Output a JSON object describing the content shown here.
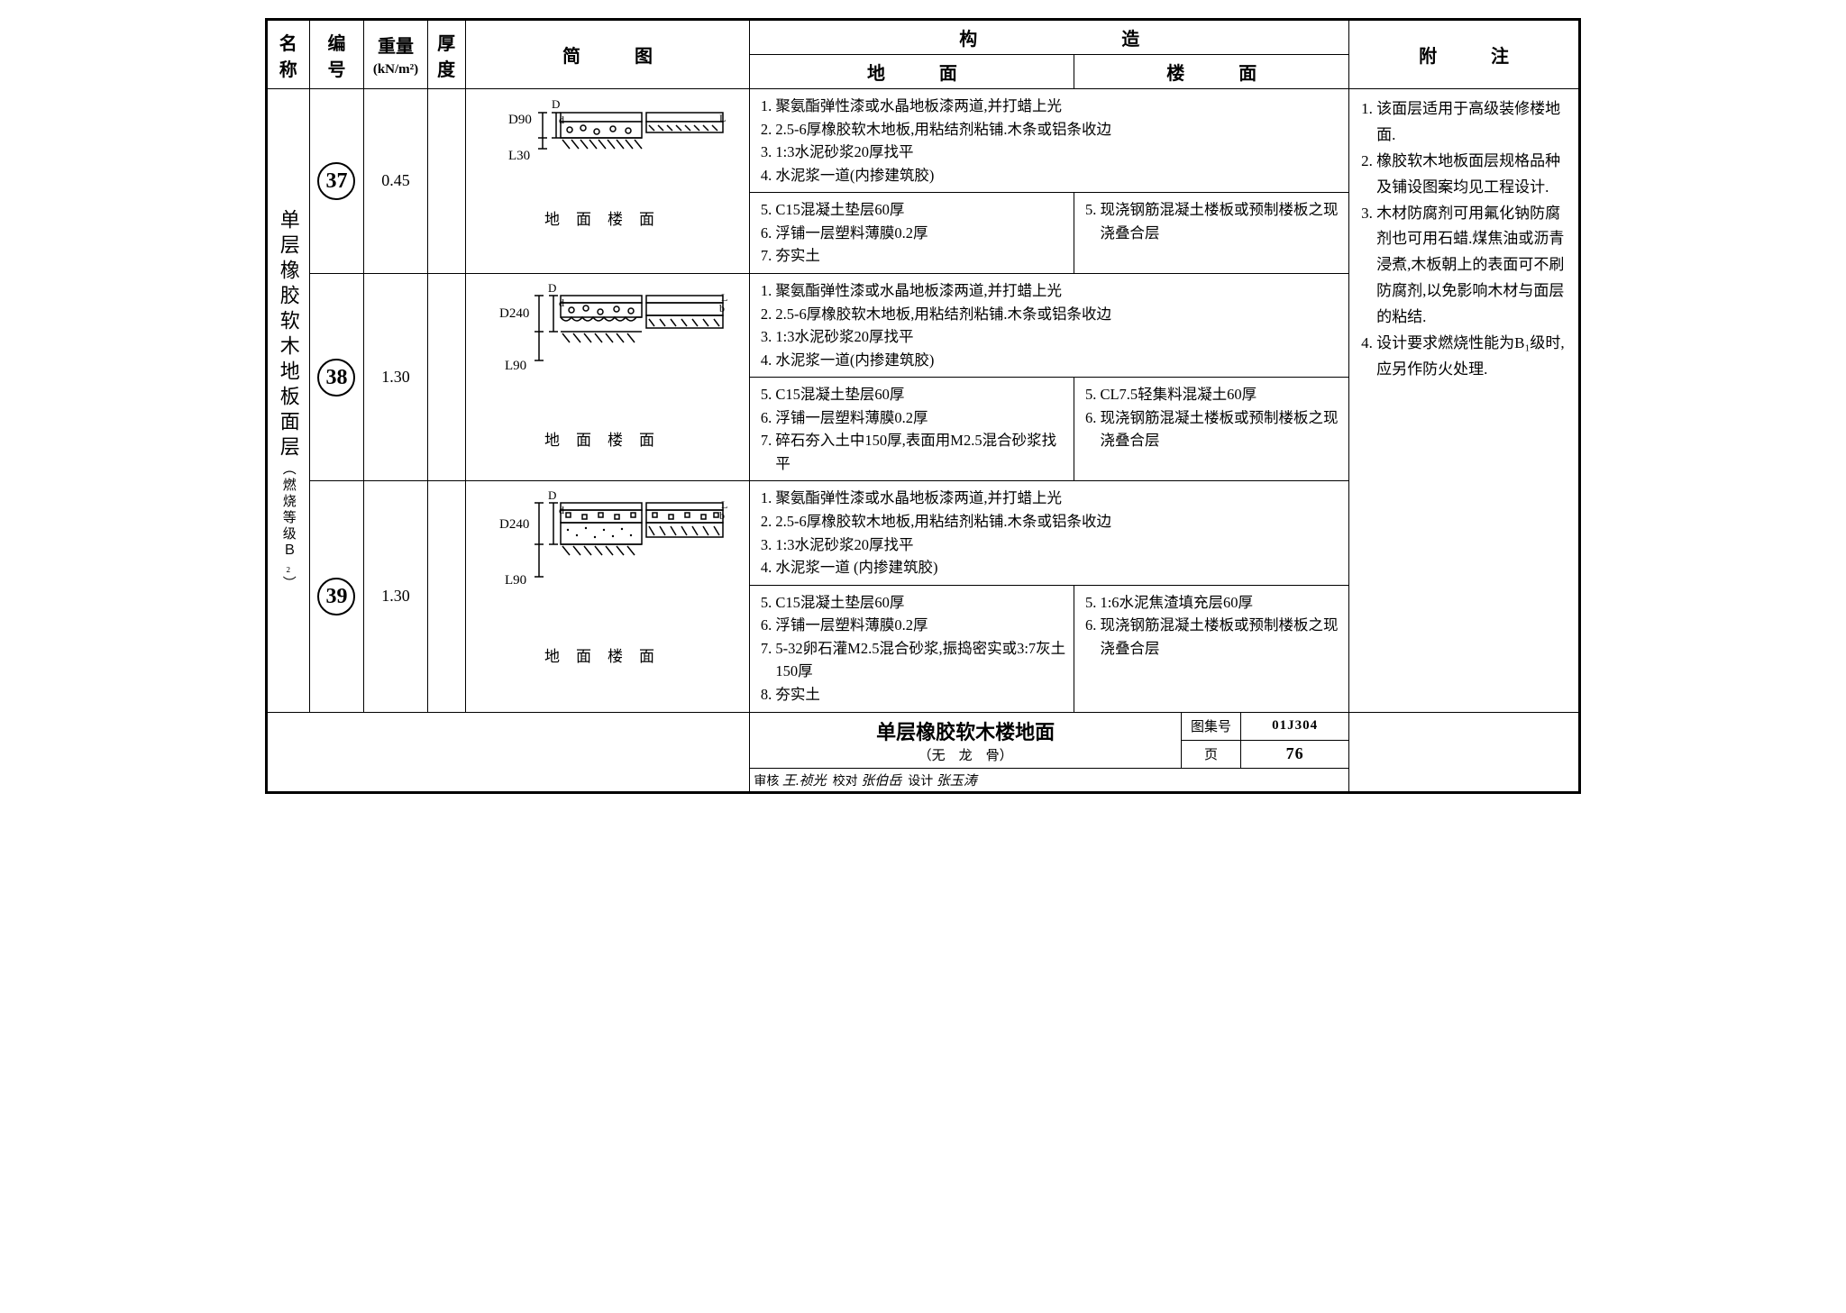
{
  "header": {
    "name": "名\n称",
    "code": "编\n号",
    "weight": "重量",
    "weight_unit": "(kN/m²)",
    "thick": "厚\n度",
    "diagram": "简　　　图",
    "gouzao": "构　　　　　　　　造",
    "ground": "地　　　面",
    "floor": "楼　　　面",
    "note": "附　　　注"
  },
  "vname": "单层橡胶软木地板面层",
  "vname_sub": "（燃烧等级Ｂ₂）",
  "rows": [
    {
      "code": "37",
      "weight": "0.45",
      "dim_top": "D90",
      "dim_bot": "L30",
      "top": [
        "聚氨酯弹性漆或水晶地板漆两道,并打蜡上光",
        "2.5-6厚橡胶软木地板,用粘结剂粘铺.木条或铝条收边",
        "1:3水泥砂浆20厚找平",
        "水泥浆一道(内掺建筑胶)"
      ],
      "left": [
        "C15混凝土垫层60厚",
        "浮铺一层塑料薄膜0.2厚",
        "夯实土"
      ],
      "right": [
        "现浇钢筋混凝土楼板或预制楼板之现浇叠合层"
      ]
    },
    {
      "code": "38",
      "weight": "1.30",
      "dim_top": "D240",
      "dim_bot": "L90",
      "top": [
        "聚氨酯弹性漆或水晶地板漆两道,并打蜡上光",
        "2.5-6厚橡胶软木地板,用粘结剂粘铺.木条或铝条收边",
        "1:3水泥砂浆20厚找平",
        "水泥浆一道(内掺建筑胶)"
      ],
      "left": [
        "C15混凝土垫层60厚",
        "浮铺一层塑料薄膜0.2厚",
        "碎石夯入土中150厚,表面用M2.5混合砂浆找平"
      ],
      "right": [
        "CL7.5轻集料混凝土60厚",
        "现浇钢筋混凝土楼板或预制楼板之现浇叠合层"
      ]
    },
    {
      "code": "39",
      "weight": "1.30",
      "dim_top": "D240",
      "dim_bot": "L90",
      "top": [
        "聚氨酯弹性漆或水晶地板漆两道,并打蜡上光",
        "2.5-6厚橡胶软木地板,用粘结剂粘铺.木条或铝条收边",
        "1:3水泥砂浆20厚找平",
        "水泥浆一道 (内掺建筑胶)"
      ],
      "left": [
        "C15混凝土垫层60厚",
        "浮铺一层塑料薄膜0.2厚",
        "5-32卵石灌M2.5混合砂浆,振捣密实或3:7灰土150厚",
        "夯实土"
      ],
      "right": [
        "1:6水泥焦渣填充层60厚",
        "现浇钢筋混凝土楼板或预制楼板之现浇叠合层"
      ]
    }
  ],
  "diagram_labels": {
    "left": "地面",
    "right": "楼面"
  },
  "notes": [
    "该面层适用于高级装修楼地面.",
    "橡胶软木地板面层规格品种及铺设图案均见工程设计.",
    "木材防腐剂可用氟化钠防腐剂也可用石蜡.煤焦油或沥青浸煮,木板朝上的表面可不刷防腐剂,以免影响木材与面层的粘结.",
    "设计要求燃烧性能为B₁级时,应另作防火处理."
  ],
  "footer": {
    "title": "单层橡胶软木楼地面",
    "subtitle": "（无　龙　骨）",
    "set_label": "图集号",
    "set_code": "01J304",
    "page_label": "页",
    "page_no": "76",
    "shenhe": "审核",
    "jiaodui": "校对",
    "sheji": "设计",
    "sig1": "王.祯光",
    "sig2": "张伯岳",
    "sig3": "张玉涛"
  },
  "svg": {
    "stroke": "#000",
    "fill_dots": "#000",
    "bg": "#fff"
  }
}
